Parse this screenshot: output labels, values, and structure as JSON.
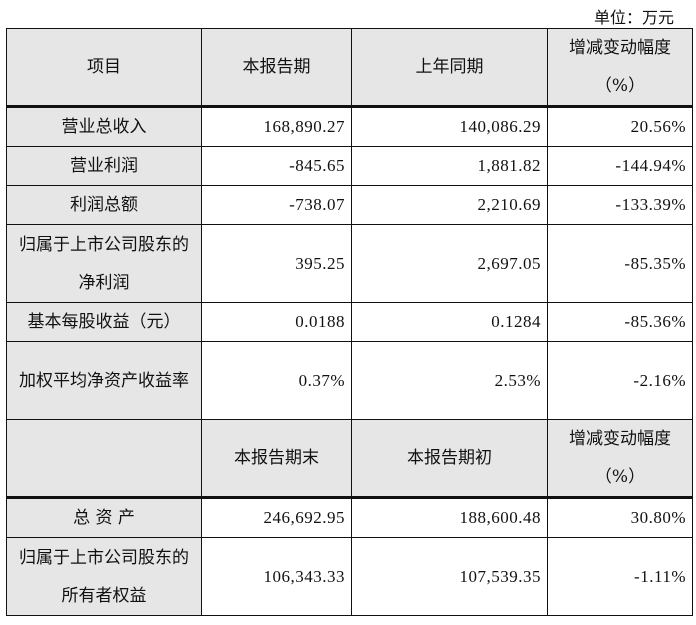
{
  "unit_label": "单位：万元",
  "header1": {
    "item": "项目",
    "current": "本报告期",
    "prior": "上年同期",
    "change": "增减变动幅度",
    "change_unit": "（%）"
  },
  "rows1": [
    {
      "label": "营业总收入",
      "current": "168,890.27",
      "prior": "140,086.29",
      "change": "20.56%"
    },
    {
      "label": "营业利润",
      "current": "-845.65",
      "prior": "1,881.82",
      "change": "-144.94%"
    },
    {
      "label": "利润总额",
      "current": "-738.07",
      "prior": "2,210.69",
      "change": "-133.39%"
    },
    {
      "label": "归属于上市公司股东的净利润",
      "current": "395.25",
      "prior": "2,697.05",
      "change": "-85.35%"
    },
    {
      "label": "基本每股收益（元）",
      "current": "0.0188",
      "prior": "0.1284",
      "change": "-85.36%"
    },
    {
      "label": "加权平均净资产收益率",
      "current": "0.37%",
      "prior": "2.53%",
      "change": "-2.16%"
    }
  ],
  "header2": {
    "item": "",
    "current": "本报告期末",
    "prior": "本报告期初",
    "change": "增减变动幅度",
    "change_unit": "（%）"
  },
  "rows2": [
    {
      "label": "总 资 产",
      "current": "246,692.95",
      "prior": "188,600.48",
      "change": "30.80%"
    },
    {
      "label": "归属于上市公司股东的所有者权益",
      "current": "106,343.33",
      "prior": "107,539.35",
      "change": "-1.11%"
    }
  ]
}
